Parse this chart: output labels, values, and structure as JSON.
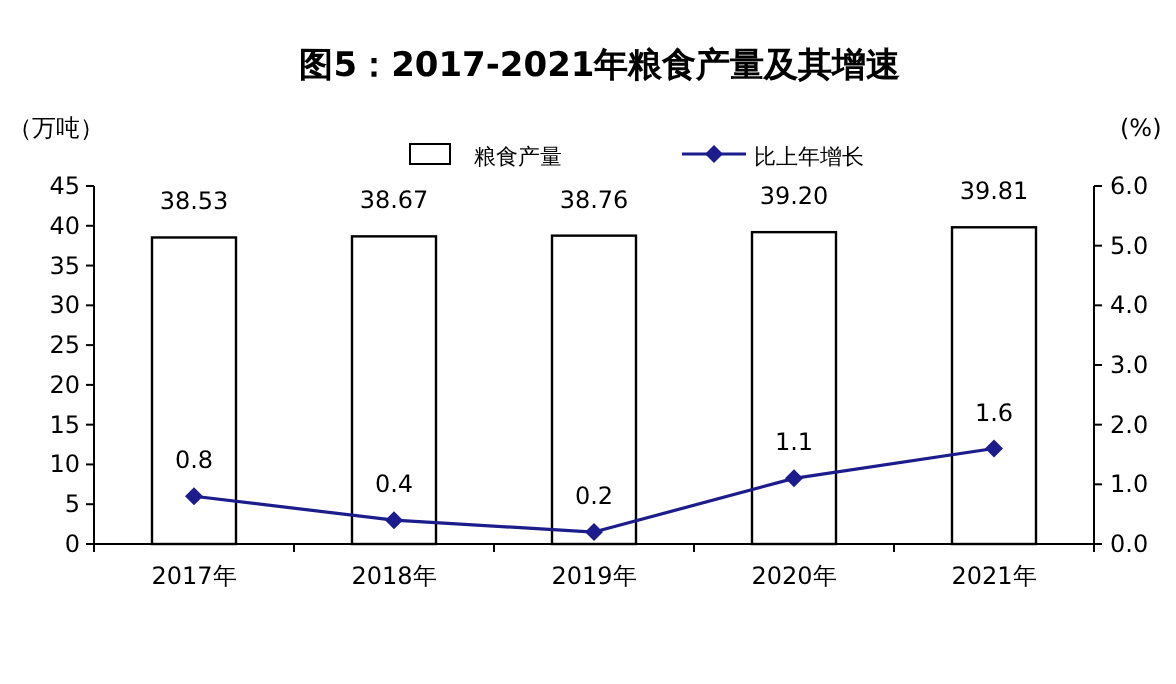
{
  "chart_data": {
    "type": "bar",
    "title": "图5：2017-2021年粮食产量及其增速",
    "ylabel": "（万吨）",
    "y2label": "(%)",
    "categories": [
      "2017年",
      "2018年",
      "2019年",
      "2020年",
      "2021年"
    ],
    "series": [
      {
        "name": "粮食产量",
        "color": "#ffffff",
        "values": [
          38.53,
          38.67,
          38.76,
          39.2,
          39.81
        ],
        "value_labels": [
          "38.53",
          "38.67",
          "38.76",
          "39.20",
          "39.81"
        ]
      },
      {
        "name": "比上年增长",
        "type": "line",
        "axis": "y2",
        "color": "#1c1c8c",
        "marker": "diamond",
        "values": [
          0.8,
          0.4,
          0.2,
          1.1,
          1.6
        ],
        "value_labels": [
          "0.8",
          "0.4",
          "0.2",
          "1.1",
          "1.6"
        ]
      }
    ],
    "ylim": [
      0,
      45
    ],
    "yticks": [
      0,
      5,
      10,
      15,
      20,
      25,
      30,
      35,
      40,
      45
    ],
    "y2lim": [
      0,
      6
    ],
    "y2ticks": [
      {
        "value": 0,
        "label": "0.0"
      },
      {
        "value": 1,
        "label": "1.0"
      },
      {
        "value": 2,
        "label": "2.0"
      },
      {
        "value": 3,
        "label": "3.0"
      },
      {
        "value": 4,
        "label": "4.0"
      },
      {
        "value": 5,
        "label": "5.0"
      },
      {
        "value": 6,
        "label": "6.0"
      }
    ],
    "legend": "top",
    "grid": false
  }
}
